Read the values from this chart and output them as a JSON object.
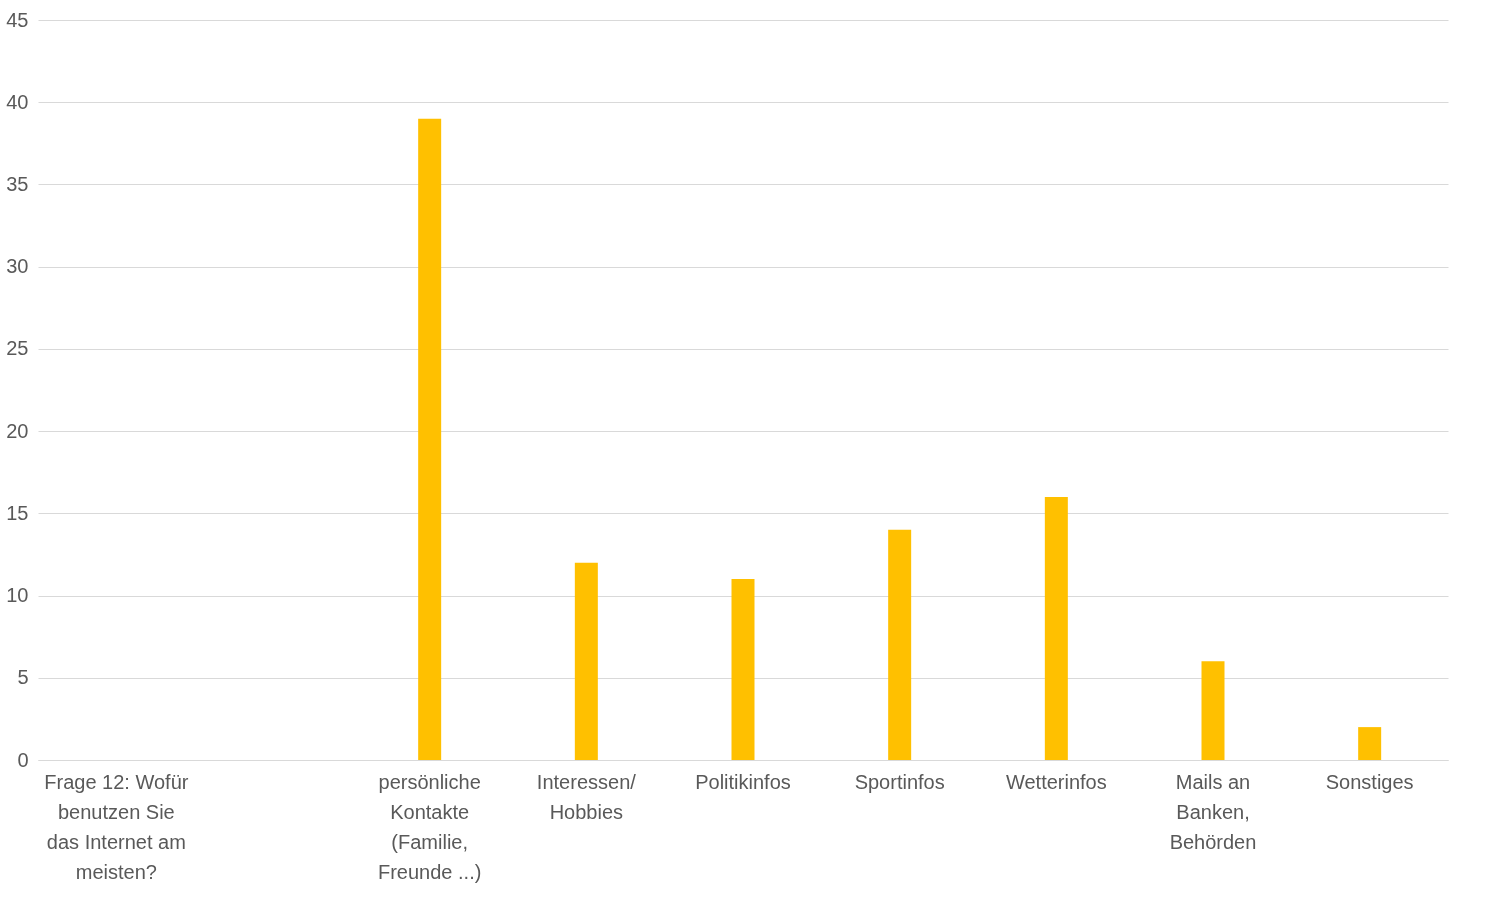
{
  "chart_data": {
    "type": "bar",
    "categories": [
      "Frage 12: Wofür benutzen Sie das Internet am meisten?",
      null,
      "persönliche Kontakte (Familie, Freunde ...)",
      "Interessen/ Hobbies",
      "Politikinfos",
      "Sportinfos",
      "Wetterinfos",
      "Mails an Banken, Behörden",
      "Sonstiges"
    ],
    "values": [
      null,
      null,
      39,
      12,
      11,
      14,
      16,
      6,
      2
    ],
    "color": "#ffc000",
    "ylim": [
      0,
      45
    ],
    "yticks": [
      0,
      5,
      10,
      15,
      20,
      25,
      30,
      35,
      40,
      45
    ],
    "grid": "y"
  }
}
